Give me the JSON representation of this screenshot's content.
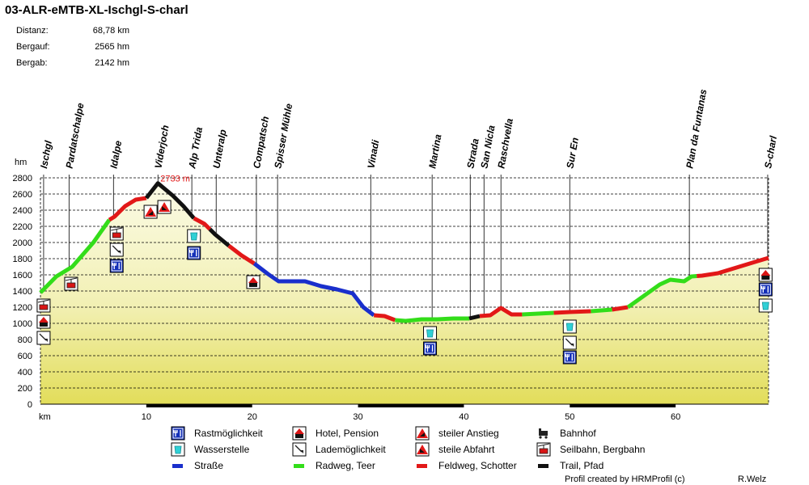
{
  "title": "03-ALR-eMTB-XL-Ischgl-S-charl",
  "stats": [
    {
      "label": "Distanz:",
      "value": "68,78 km"
    },
    {
      "label": "Bergauf:",
      "value": "2565 hm"
    },
    {
      "label": "Bergab:",
      "value": "2142 hm"
    }
  ],
  "chart_data": {
    "type": "area",
    "title": "03-ALR-eMTB-XL-Ischgl-S-charl",
    "xlabel": "km",
    "ylabel": "hm",
    "xlim": [
      0,
      68.78
    ],
    "ylim": [
      0,
      2800
    ],
    "x_ticks": [
      10,
      20,
      30,
      40,
      50,
      60
    ],
    "y_ticks": [
      0,
      200,
      400,
      600,
      800,
      1000,
      1200,
      1400,
      1600,
      1800,
      2000,
      2200,
      2400,
      2600,
      2800
    ],
    "grid": "horizontal dashed",
    "max_label": "2733 m",
    "max_point": {
      "x": 11.1,
      "y": 2733
    },
    "profile": [
      [
        0.0,
        1380
      ],
      [
        1.5,
        1580
      ],
      [
        3.0,
        1700
      ],
      [
        5.0,
        2000
      ],
      [
        6.5,
        2280
      ],
      [
        7.0,
        2320
      ],
      [
        8.0,
        2450
      ],
      [
        9.0,
        2530
      ],
      [
        10.0,
        2550
      ],
      [
        11.1,
        2733
      ],
      [
        12.5,
        2580
      ],
      [
        13.5,
        2450
      ],
      [
        14.5,
        2300
      ],
      [
        15.5,
        2230
      ],
      [
        16.5,
        2100
      ],
      [
        17.8,
        1960
      ],
      [
        19.0,
        1840
      ],
      [
        20.2,
        1740
      ],
      [
        21.5,
        1610
      ],
      [
        22.5,
        1520
      ],
      [
        24.0,
        1520
      ],
      [
        25.0,
        1520
      ],
      [
        26.5,
        1460
      ],
      [
        28.0,
        1420
      ],
      [
        29.5,
        1370
      ],
      [
        30.5,
        1200
      ],
      [
        31.5,
        1100
      ],
      [
        32.5,
        1090
      ],
      [
        33.5,
        1040
      ],
      [
        34.5,
        1030
      ],
      [
        36.0,
        1050
      ],
      [
        37.5,
        1050
      ],
      [
        39.0,
        1060
      ],
      [
        40.5,
        1060
      ],
      [
        41.5,
        1090
      ],
      [
        42.5,
        1100
      ],
      [
        43.5,
        1190
      ],
      [
        44.5,
        1110
      ],
      [
        45.5,
        1110
      ],
      [
        47.0,
        1120
      ],
      [
        48.5,
        1130
      ],
      [
        50.0,
        1140
      ],
      [
        52.0,
        1150
      ],
      [
        54.0,
        1170
      ],
      [
        55.5,
        1200
      ],
      [
        57.0,
        1340
      ],
      [
        58.5,
        1480
      ],
      [
        59.5,
        1540
      ],
      [
        60.8,
        1520
      ],
      [
        61.5,
        1580
      ],
      [
        62.5,
        1590
      ],
      [
        64.0,
        1620
      ],
      [
        65.5,
        1680
      ],
      [
        67.5,
        1760
      ],
      [
        68.78,
        1810
      ]
    ],
    "segments": [
      {
        "from": 0.0,
        "to": 6.5,
        "type": "Radweg, Teer"
      },
      {
        "from": 6.5,
        "to": 10.0,
        "type": "Feldweg, Schotter"
      },
      {
        "from": 10.0,
        "to": 14.5,
        "type": "Trail, Pfad"
      },
      {
        "from": 14.5,
        "to": 16.0,
        "type": "Feldweg, Schotter"
      },
      {
        "from": 16.0,
        "to": 17.8,
        "type": "Trail, Pfad"
      },
      {
        "from": 17.8,
        "to": 20.2,
        "type": "Feldweg, Schotter"
      },
      {
        "from": 20.2,
        "to": 31.5,
        "type": "Straße"
      },
      {
        "from": 31.5,
        "to": 33.5,
        "type": "Feldweg, Schotter"
      },
      {
        "from": 33.5,
        "to": 40.5,
        "type": "Radweg, Teer"
      },
      {
        "from": 40.5,
        "to": 41.5,
        "type": "Trail, Pfad"
      },
      {
        "from": 41.5,
        "to": 45.5,
        "type": "Feldweg, Schotter"
      },
      {
        "from": 45.5,
        "to": 48.5,
        "type": "Radweg, Teer"
      },
      {
        "from": 48.5,
        "to": 52.0,
        "type": "Feldweg, Schotter"
      },
      {
        "from": 52.0,
        "to": 54.0,
        "type": "Radweg, Teer"
      },
      {
        "from": 54.0,
        "to": 55.5,
        "type": "Feldweg, Schotter"
      },
      {
        "from": 55.5,
        "to": 62.0,
        "type": "Radweg, Teer"
      },
      {
        "from": 62.0,
        "to": 68.78,
        "type": "Feldweg, Schotter"
      }
    ],
    "surface_colors": {
      "Straße": "#1a2fcc",
      "Radweg, Teer": "#33dd1a",
      "Feldweg, Schotter": "#e21818",
      "Trail, Pfad": "#111111"
    },
    "trail_bar": [
      [
        10,
        20
      ],
      [
        30,
        40
      ],
      [
        50,
        60
      ]
    ],
    "places": [
      {
        "name": "Ischgl",
        "km": 0.3
      },
      {
        "name": "Pardatschalpe",
        "km": 2.7
      },
      {
        "name": "Idalpe",
        "km": 6.9
      },
      {
        "name": "Viderjoch",
        "km": 11.1
      },
      {
        "name": "Alp Trida",
        "km": 14.3
      },
      {
        "name": "Unteralp",
        "km": 16.6
      },
      {
        "name": "Compatsch",
        "km": 20.4
      },
      {
        "name": "Spisser Mühle",
        "km": 22.4
      },
      {
        "name": "Vinadi",
        "km": 31.2
      },
      {
        "name": "Martina",
        "km": 37.0
      },
      {
        "name": "Strada",
        "km": 40.6
      },
      {
        "name": "San Nicla",
        "km": 41.9
      },
      {
        "name": "Raschvella",
        "km": 43.5
      },
      {
        "name": "Sur En",
        "km": 50.0
      },
      {
        "name": "Plan da Funtanas",
        "km": 61.3
      },
      {
        "name": "S-charl",
        "km": 68.7
      }
    ],
    "markers": [
      {
        "km": 0.3,
        "y": 1220,
        "icon": "cable"
      },
      {
        "km": 0.3,
        "y": 1020,
        "icon": "hotel"
      },
      {
        "km": 0.3,
        "y": 820,
        "icon": "charging"
      },
      {
        "km": 2.9,
        "y": 1490,
        "icon": "cable"
      },
      {
        "km": 7.2,
        "y": 2110,
        "icon": "cable"
      },
      {
        "km": 7.2,
        "y": 1910,
        "icon": "charging"
      },
      {
        "km": 7.2,
        "y": 1710,
        "icon": "rest"
      },
      {
        "km": 10.4,
        "y": 2380,
        "icon": "steep-up"
      },
      {
        "km": 11.7,
        "y": 2440,
        "icon": "steep-down"
      },
      {
        "km": 14.5,
        "y": 2080,
        "icon": "water"
      },
      {
        "km": 14.5,
        "y": 1870,
        "icon": "rest"
      },
      {
        "km": 20.1,
        "y": 1510,
        "icon": "hotel"
      },
      {
        "km": 36.8,
        "y": 880,
        "icon": "water"
      },
      {
        "km": 36.8,
        "y": 690,
        "icon": "rest"
      },
      {
        "km": 50.0,
        "y": 960,
        "icon": "water"
      },
      {
        "km": 50.0,
        "y": 760,
        "icon": "charging"
      },
      {
        "km": 50.0,
        "y": 580,
        "icon": "rest"
      },
      {
        "km": 68.5,
        "y": 1600,
        "icon": "hotel"
      },
      {
        "km": 68.5,
        "y": 1420,
        "icon": "rest"
      },
      {
        "km": 68.5,
        "y": 1220,
        "icon": "water"
      }
    ]
  },
  "legend": [
    {
      "label": "Rastmöglichkeit",
      "icon": "rest"
    },
    {
      "label": "Hotel, Pension",
      "icon": "hotel"
    },
    {
      "label": "steiler Anstieg",
      "icon": "steep-up"
    },
    {
      "label": "Bahnhof",
      "icon": "train"
    },
    {
      "label": "Wasserstelle",
      "icon": "water"
    },
    {
      "label": "Lademöglichkeit",
      "icon": "charging"
    },
    {
      "label": "steile Abfahrt",
      "icon": "steep-down"
    },
    {
      "label": "Seilbahn, Bergbahn",
      "icon": "cable"
    },
    {
      "label": "Straße",
      "icon": "line",
      "color": "#1a2fcc"
    },
    {
      "label": "Radweg, Teer",
      "icon": "line",
      "color": "#33dd1a"
    },
    {
      "label": "Feldweg, Schotter",
      "icon": "line",
      "color": "#e21818"
    },
    {
      "label": "Trail, Pfad",
      "icon": "line",
      "color": "#111111"
    }
  ],
  "footer": {
    "credit": "Profil created by HRMProfil (c)",
    "author": "R.Welz"
  }
}
